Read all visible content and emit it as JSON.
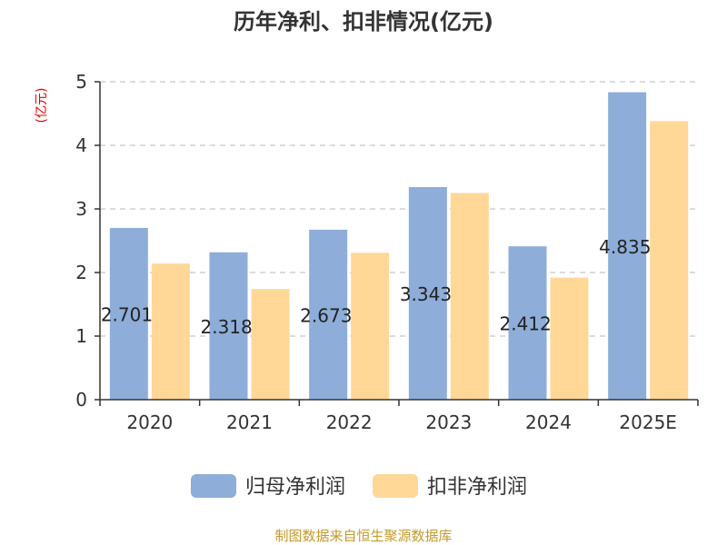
{
  "chart_data": {
    "type": "bar",
    "title": "历年净利、扣非情况(亿元)",
    "unit_label": "(亿元)",
    "categories": [
      "2020",
      "2021",
      "2022",
      "2023",
      "2024",
      "2025E"
    ],
    "series": [
      {
        "name": "归母净利润",
        "color": "#8eadd9",
        "values": [
          2.701,
          2.318,
          2.673,
          3.343,
          2.412,
          4.835
        ]
      },
      {
        "name": "扣非净利润",
        "color": "#ffd797",
        "values": [
          2.14,
          1.74,
          2.31,
          3.25,
          1.92,
          4.38
        ]
      }
    ],
    "data_labels": [
      "2.701",
      "2.318",
      "2.673",
      "3.343",
      "2.412",
      "4.835"
    ],
    "ylim": [
      0,
      5
    ],
    "yticks": [
      "0",
      "1",
      "2",
      "3",
      "4",
      "5"
    ],
    "grid": true,
    "legend_position": "bottom",
    "source_text": "制图数据来自恒生聚源数据库"
  }
}
